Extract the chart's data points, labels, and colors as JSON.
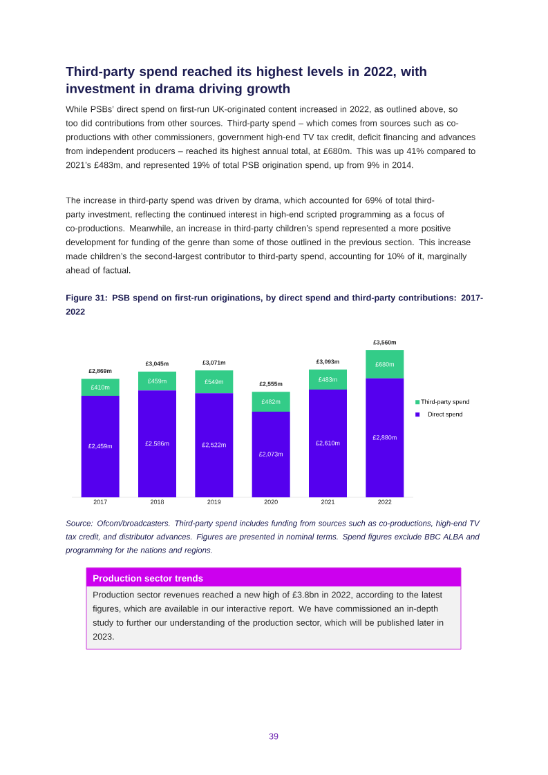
{
  "chart_data": {
    "type": "bar",
    "stacked": true,
    "title": "Figure 31: PSB spend on first-run originations, by direct spend and third-party contributions: 2017-2022",
    "categories": [
      "2017",
      "2018",
      "2019",
      "2020",
      "2021",
      "2022"
    ],
    "series": [
      {
        "name": "Direct spend",
        "color": "#5500ee",
        "values": [
          2459,
          2586,
          2522,
          2073,
          2610,
          2880
        ],
        "value_labels": [
          "£2,459m",
          "£2,586m",
          "£2,522m",
          "£2,073m",
          "£2,610m",
          "£2,880m"
        ]
      },
      {
        "name": "Third-party spend",
        "color": "#33cc88",
        "values": [
          410,
          459,
          549,
          482,
          483,
          680
        ],
        "value_labels": [
          "£410m",
          "£459m",
          "£549m",
          "£482m",
          "£483m",
          "£680m"
        ]
      }
    ],
    "totals": [
      "£2,869m",
      "£3,045m",
      "£3,071m",
      "£2,555m",
      "£3,093m",
      "£3,560m"
    ],
    "legend": "right",
    "annotations": [
      "Third-party spend reached its highest levels in 2022, with investment in drama driving growth",
      "While PSBs’ direct spend on first-run UK-originated content increased in 2022, as outlined above, so too did contributions from other sources. Third-party spend – which comes from sources such as co-productions with other commissioners, government high-end TV tax credit, deficit financing and advances from independent producers – reached its highest annual total, at £680m. This was up 41% compared to 2021’s £483m, and represented 19% of total PSB origination spend, up from 9% in 2014.",
      "The increase in third-party spend was driven by drama, which accounted for 69% of total third-party investment, reflecting the continued interest in high-end scripted programming as a focus of co-productions. Meanwhile, an increase in third-party children’s spend represented a more positive development for funding of the genre than some of those outlined in the previous section. This increase made children’s the second-largest contributor to third-party spend, accounting for 10% of it, marginally ahead of factual.",
      "Source: Ofcom/broadcasters. Third-party spend includes funding from sources such as co-productions, high-end TV tax credit, and distributor advances. Figures are presented in nominal terms. Spend figures exclude BBC ALBA and programming for the nations and regions.",
      "Production sector trends",
      "Production sector revenues reached a new high of £3.8bn in 2022, according to the latest figures, which are available in our interactive report. We have commissioned an in-depth study to further our understanding of the production sector, which will be published later in 2023.",
      "39"
    ]
  }
}
